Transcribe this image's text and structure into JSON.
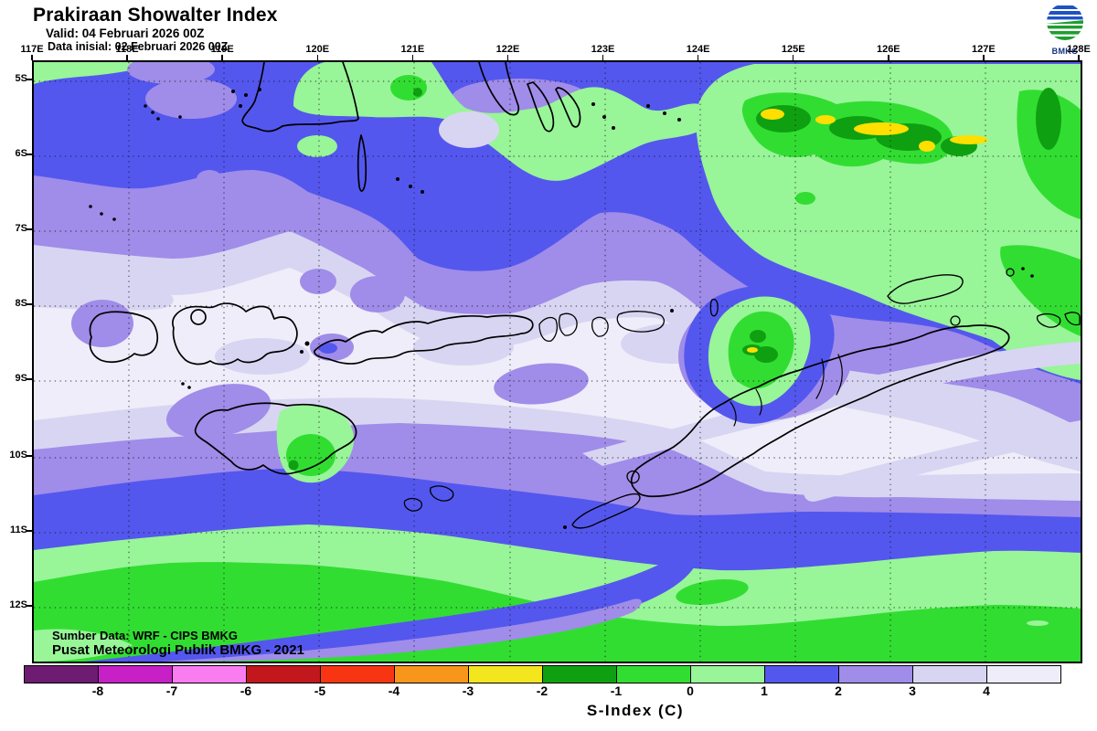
{
  "header": {
    "title": "Prakiraan Showalter Index",
    "valid": "Valid: 04 Februari 2026 00Z",
    "init": "Data inisial: 02 Februari 2026 00Z"
  },
  "logo": {
    "label": "BMKG"
  },
  "map": {
    "lon_labels": [
      "117E",
      "118E",
      "119E",
      "120E",
      "121E",
      "122E",
      "123E",
      "124E",
      "125E",
      "126E",
      "127E",
      "128E"
    ],
    "lat_labels": [
      "5S",
      "6S",
      "7S",
      "8S",
      "9S",
      "10S",
      "11S",
      "12S"
    ],
    "source_line1": "Sumber Data: WRF - CIPS BMKG",
    "source_line2": "Pusat Meteorologi Publik BMKG - 2021"
  },
  "legend": {
    "title": "S-Index (C)",
    "tick_labels": [
      "-8",
      "-7",
      "-6",
      "-5",
      "-4",
      "-3",
      "-2",
      "-1",
      "0",
      "1",
      "2",
      "3",
      "4"
    ],
    "cell_colors": [
      "#6e1b72",
      "#c620c6",
      "#f97df0",
      "#c2171d",
      "#f83512",
      "#f8961c",
      "#f3e51e",
      "#0fa012",
      "#32dd32",
      "#98f598",
      "#5457ee",
      "#a08ce9",
      "#d8d5f2",
      "#efedf9"
    ]
  }
}
